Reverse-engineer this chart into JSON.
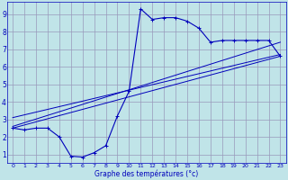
{
  "title": "Graphe des températures (°c)",
  "bg_color": "#c0e4e8",
  "grid_color": "#9999bb",
  "line_color": "#0000bb",
  "xlim": [
    -0.5,
    23.5
  ],
  "ylim": [
    0.5,
    9.7
  ],
  "xticks": [
    0,
    1,
    2,
    3,
    4,
    5,
    6,
    7,
    8,
    9,
    10,
    11,
    12,
    13,
    14,
    15,
    16,
    17,
    18,
    19,
    20,
    21,
    22,
    23
  ],
  "yticks": [
    1,
    2,
    3,
    4,
    5,
    6,
    7,
    8,
    9
  ],
  "main_curve_x": [
    0,
    1,
    2,
    3,
    4,
    5,
    6,
    7,
    8,
    9,
    10,
    11,
    12,
    13,
    14,
    15,
    16,
    17,
    18,
    19,
    20,
    21,
    22,
    23
  ],
  "main_curve_y": [
    2.5,
    2.4,
    2.5,
    2.5,
    2.0,
    0.9,
    0.85,
    1.1,
    1.5,
    3.2,
    4.6,
    9.3,
    8.7,
    8.8,
    8.8,
    8.6,
    8.2,
    7.4,
    7.5,
    7.5,
    7.5,
    7.5,
    7.5,
    6.6
  ],
  "trend1_x": [
    0,
    23
  ],
  "trend1_y": [
    2.5,
    6.6
  ],
  "trend2_x": [
    0,
    23
  ],
  "trend2_y": [
    2.6,
    7.4
  ],
  "trend3_x": [
    0,
    23
  ],
  "trend3_y": [
    3.1,
    6.7
  ]
}
